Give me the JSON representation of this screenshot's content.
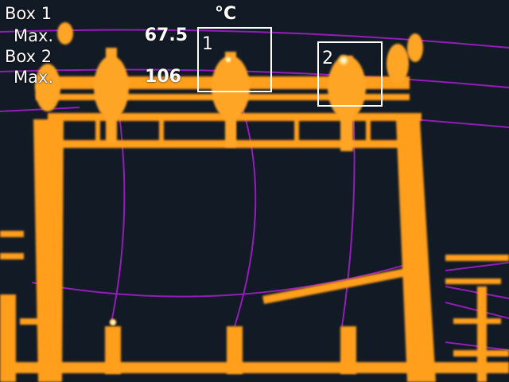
{
  "measurements": [
    {
      "box_label": "Box 1",
      "stat_label": "Max.",
      "value": "67.5"
    },
    {
      "box_label": "Box 2",
      "stat_label": "Max.",
      "value": "106"
    }
  ],
  "unit": "°C",
  "rois": [
    {
      "number": "1"
    },
    {
      "number": "2"
    }
  ],
  "palette": {
    "background": "#111a25",
    "structure": "#ff9f1a",
    "hot": "#ffd36a",
    "hottest": "#ffffff",
    "wire": "#b020d0"
  }
}
